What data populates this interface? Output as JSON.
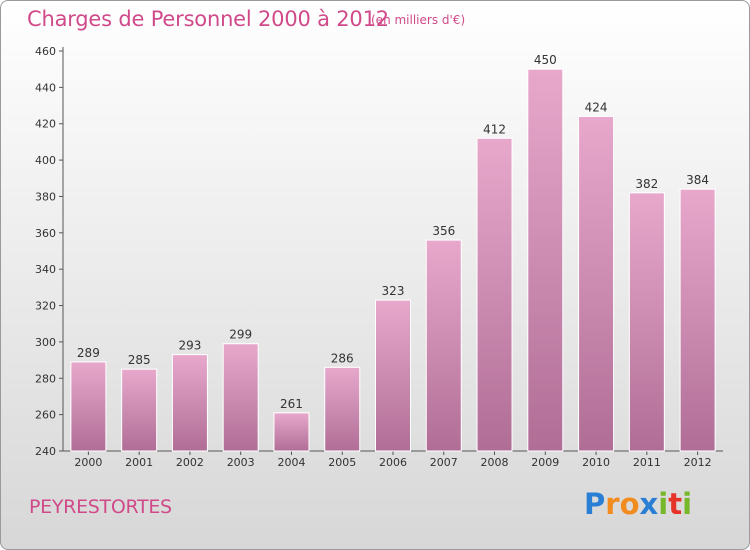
{
  "title": "Charges de Personnel 2000 à 2012",
  "subtitle": "(en milliers d'€)",
  "commune": "PEYRESTORTES",
  "logo": {
    "text": "Proxiti",
    "letter_colors": [
      "#2a7fd4",
      "#f28c1e",
      "#f28c1e",
      "#2a7fd4",
      "#76b82a",
      "#e6332a",
      "#76b82a"
    ]
  },
  "colors": {
    "bar_top": "#e8a8cc",
    "bar_bottom": "#b06e96",
    "title": "#d04a8a"
  },
  "chart_data": {
    "type": "bar",
    "categories": [
      "2000",
      "2001",
      "2002",
      "2003",
      "2004",
      "2005",
      "2006",
      "2007",
      "2008",
      "2009",
      "2010",
      "2011",
      "2012"
    ],
    "values": [
      289,
      285,
      293,
      299,
      261,
      286,
      323,
      356,
      412,
      450,
      424,
      382,
      384
    ],
    "ylim": [
      240,
      460
    ],
    "yticks": [
      240,
      260,
      280,
      300,
      320,
      340,
      360,
      380,
      400,
      420,
      440,
      460
    ],
    "grid": false,
    "data_labels": true
  }
}
